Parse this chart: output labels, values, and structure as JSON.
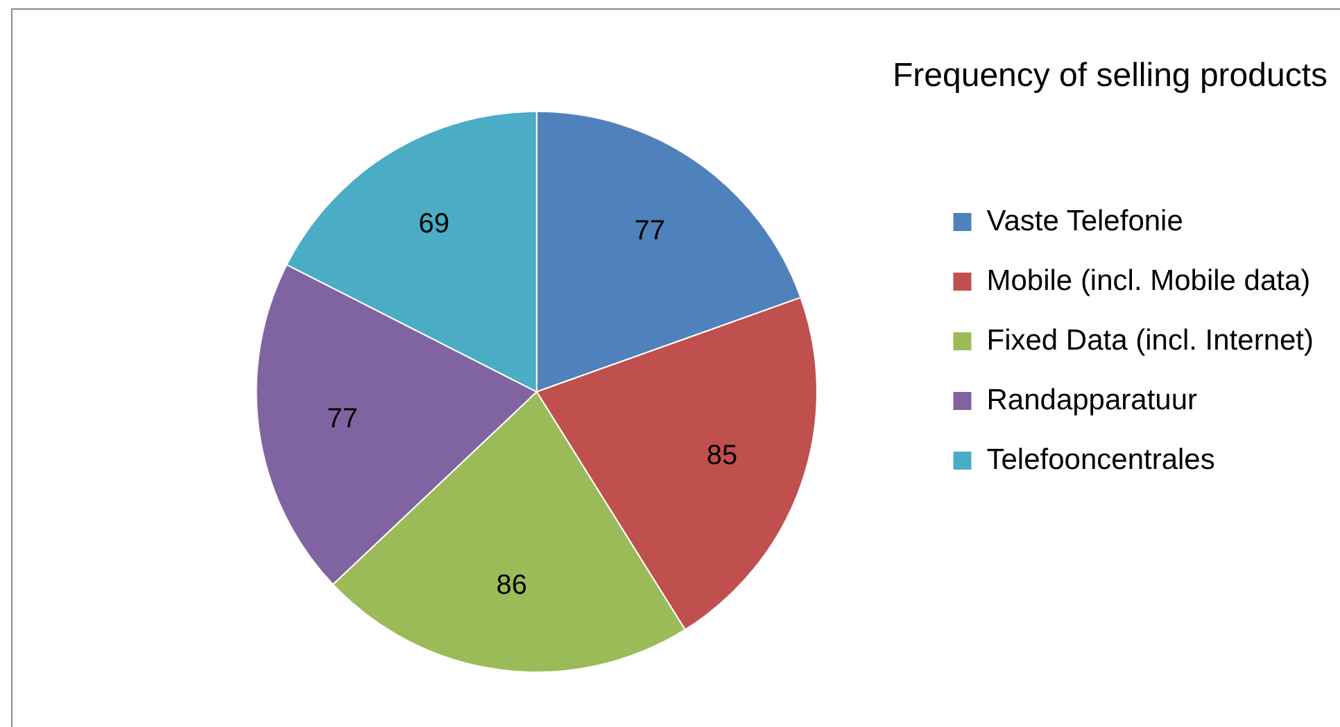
{
  "chart_data": {
    "type": "pie",
    "title": "Frequency of selling products",
    "categories": [
      "Vaste Telefonie",
      "Mobile (incl. Mobile data)",
      "Fixed Data (incl. Internet)",
      "Randapparatuur",
      "Telefooncentrales"
    ],
    "values": [
      77,
      85,
      86,
      77,
      69
    ],
    "colors": [
      "#4f81bd",
      "#c0504d",
      "#9bbb59",
      "#8064a2",
      "#4bacc6"
    ],
    "data_labels": true,
    "legend": "right"
  }
}
